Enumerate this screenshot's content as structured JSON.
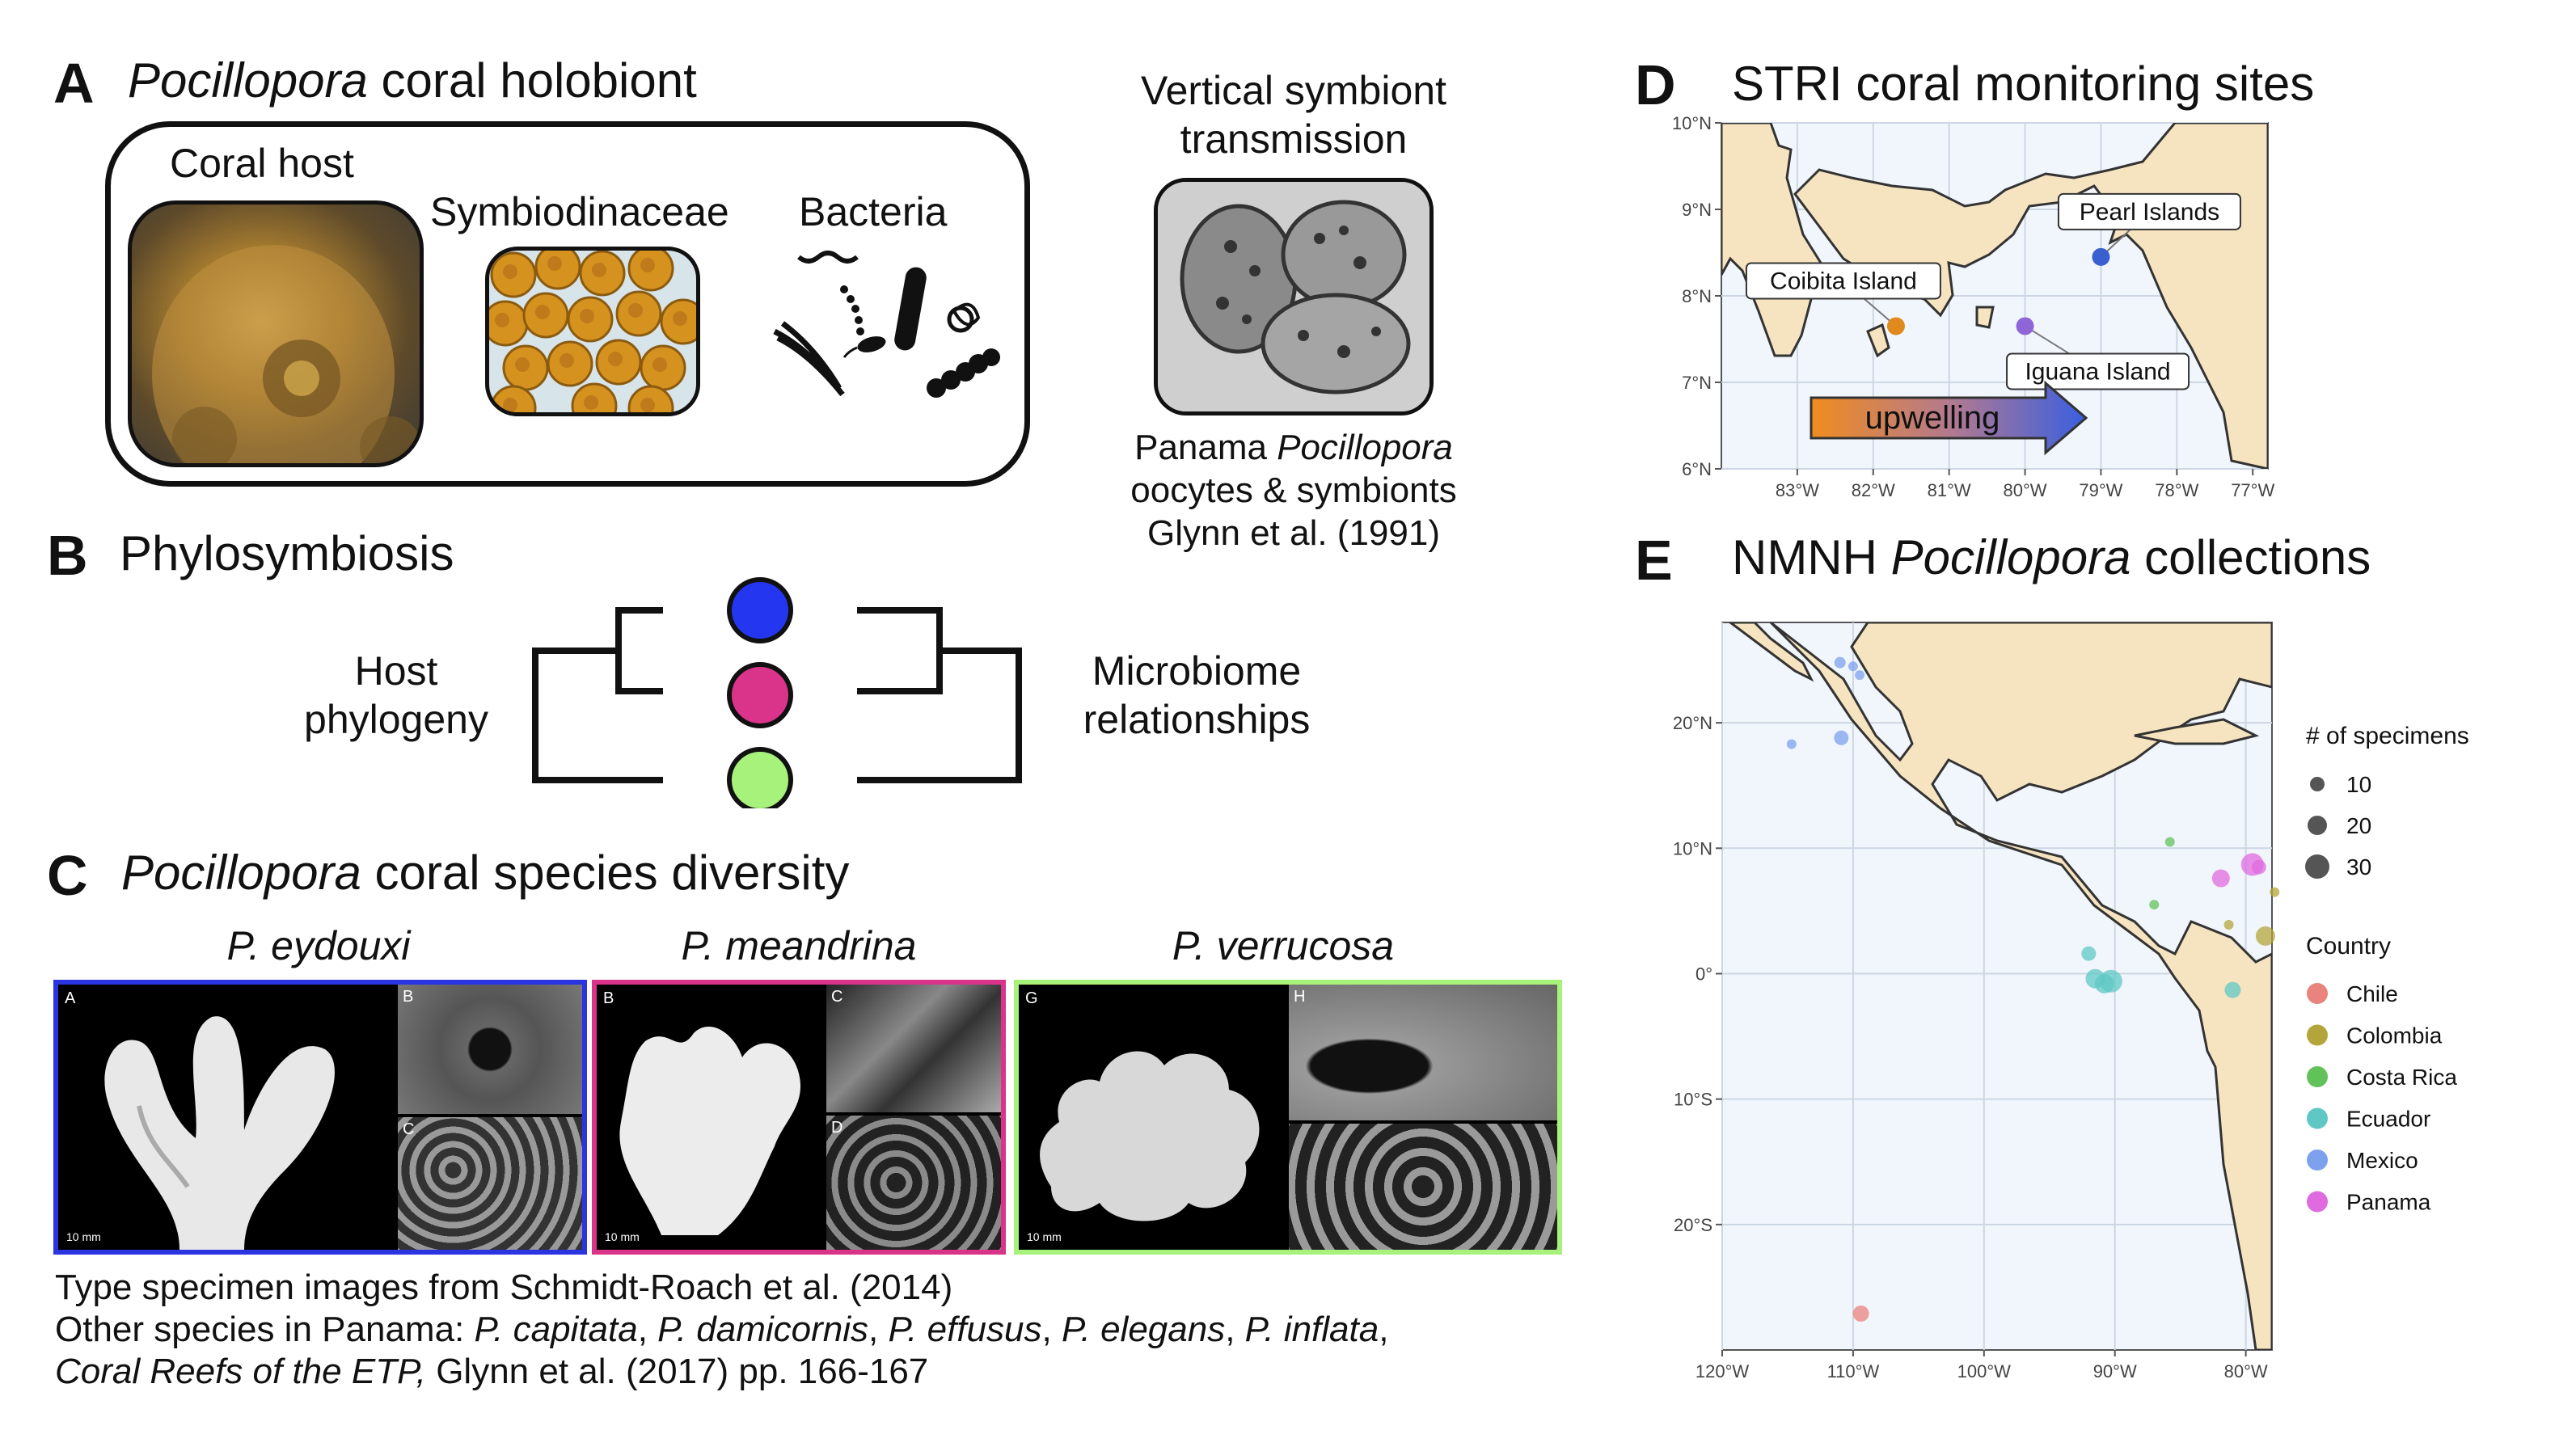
{
  "panelA": {
    "letter": "A",
    "title_italic": "Pocillopora",
    "title_rest": " coral holobiont",
    "label_host": "Coral host",
    "label_symb": "Symbiodinaceae",
    "label_bact": "Bacteria",
    "vertical_title_1": "Vertical symbiont",
    "vertical_title_2": "transmission",
    "caption_1a": "Panama ",
    "caption_1b": "Pocillopora",
    "caption_2": "oocytes & symbionts",
    "caption_3": "Glynn et al. (1991)"
  },
  "panelB": {
    "letter": "B",
    "title": "Phylosymbiosis",
    "host_1": "Host",
    "host_2": "phylogeny",
    "micro_1": "Microbiome",
    "micro_2": "relationships",
    "colors": [
      "#2436f0",
      "#d9338a",
      "#a6f27a"
    ]
  },
  "panelC": {
    "letter": "C",
    "title_italic": "Pocillopora",
    "title_rest": " coral species diversity",
    "species": [
      {
        "name": "P. eydouxi",
        "border": "#2a34e0",
        "main_label": "A",
        "sub1": "B",
        "sub2": "C",
        "scale": "10 mm"
      },
      {
        "name": "P. meandrina",
        "border": "#d9338a",
        "main_label": "B",
        "sub1": "C",
        "sub2": "D",
        "scale": "10 mm"
      },
      {
        "name": "P. verrucosa",
        "border": "#a6f27a",
        "main_label": "G",
        "sub1": "H",
        "sub2": "",
        "scale": "10 mm"
      }
    ],
    "caption_1": "Type specimen images from Schmidt-Roach et al. (2014)",
    "caption_2_prefix": "Other species in Panama: ",
    "caption_2_species": [
      "P. capitata",
      "P. damicornis",
      "P. effusus",
      "P. elegans",
      "P. inflata"
    ],
    "caption_3_italic": "Coral Reefs of the ETP,",
    "caption_3_rest": " Glynn et al. (2017) pp. 166-167"
  },
  "panelD": {
    "letter": "D",
    "title": "STRI coral monitoring sites",
    "y_ticks": [
      "10°N",
      "9°N",
      "8°N",
      "7°N",
      "6°N"
    ],
    "x_ticks": [
      "83°W",
      "82°W",
      "81°W",
      "80°W",
      "79°W",
      "78°W",
      "77°W"
    ],
    "sites": [
      {
        "name": "Pearl Islands",
        "lon": -79.0,
        "lat": 8.45,
        "color": "#3a5fcf"
      },
      {
        "name": "Coibita Island",
        "lon": -81.7,
        "lat": 7.65,
        "color": "#e08a1e"
      },
      {
        "name": "Iguana Island",
        "lon": -80.0,
        "lat": 7.65,
        "color": "#8f66d8"
      }
    ],
    "arrow_label": "upwelling"
  },
  "panelE": {
    "letter": "E",
    "title_a": "NMNH ",
    "title_italic": "Pocillopora",
    "title_b": " collections",
    "y_ticks": [
      "20°N",
      "10°N",
      "0°",
      "10°S",
      "20°S"
    ],
    "x_ticks": [
      "120°W",
      "110°W",
      "100°W",
      "90°W",
      "80°W"
    ],
    "size_legend_title": "# of specimens",
    "size_legend": [
      "10",
      "20",
      "30"
    ],
    "country_legend_title": "Country",
    "countries": [
      {
        "name": "Chile",
        "color": "#e8837e"
      },
      {
        "name": "Colombia",
        "color": "#b4a53a"
      },
      {
        "name": "Costa Rica",
        "color": "#62c25a"
      },
      {
        "name": "Ecuador",
        "color": "#5fc8c4"
      },
      {
        "name": "Mexico",
        "color": "#7ea1ee"
      },
      {
        "name": "Panama",
        "color": "#e06be0"
      }
    ]
  }
}
